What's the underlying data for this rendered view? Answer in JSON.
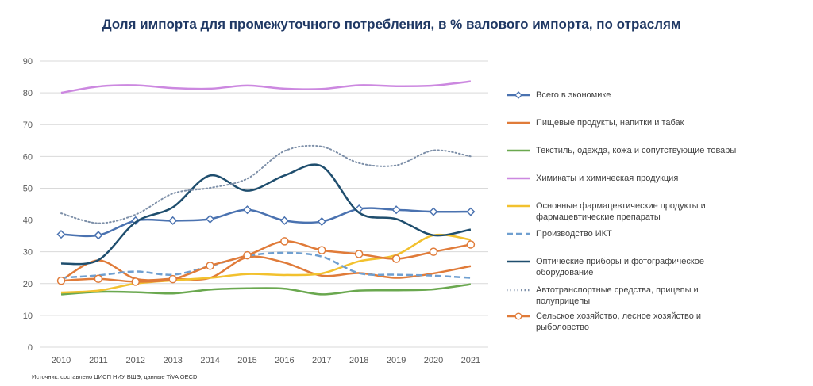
{
  "chart_data": {
    "type": "line",
    "title": "Доля импорта для промежуточного потребления, в % валового импорта, по отраслям",
    "xlabel": "",
    "ylabel": "",
    "ylim": [
      0,
      90
    ],
    "yticks": [
      0,
      10,
      20,
      30,
      40,
      50,
      60,
      70,
      80,
      90
    ],
    "grid": true,
    "legend_position": "right",
    "categories": [
      "2010",
      "2011",
      "2012",
      "2013",
      "2014",
      "2015",
      "2016",
      "2017",
      "2018",
      "2019",
      "2020",
      "2021"
    ],
    "series": [
      {
        "name": "Всего в экономике",
        "color": "#4a72b0",
        "style": "solid",
        "marker": "diamond",
        "values": [
          35.5,
          35.2,
          39.8,
          39.8,
          40.3,
          43.2,
          39.8,
          39.5,
          43.5,
          43.2,
          42.6,
          42.6
        ]
      },
      {
        "name": "Пищевые продукты, напитки и табак",
        "color": "#e07b39",
        "style": "solid",
        "marker": "none",
        "values": [
          21.0,
          27.3,
          21.5,
          21.5,
          21.8,
          28.3,
          26.6,
          22.5,
          23.3,
          21.8,
          23.2,
          25.5
        ]
      },
      {
        "name": "Текстиль, одежда, кожа и сопутствующие товары",
        "color": "#6aa84f",
        "style": "solid",
        "marker": "none",
        "values": [
          16.6,
          17.4,
          17.3,
          16.9,
          18.1,
          18.5,
          18.4,
          16.6,
          17.8,
          17.9,
          18.2,
          19.8
        ]
      },
      {
        "name": "Химикаты и химическая продукция",
        "color": "#cc88e0",
        "style": "solid",
        "marker": "none",
        "values": [
          80.0,
          82.0,
          82.4,
          81.5,
          81.3,
          82.3,
          81.3,
          81.2,
          82.4,
          82.1,
          82.3,
          83.6
        ]
      },
      {
        "name": "Основные фармацевтические продукты и фармацевтические препараты",
        "color": "#f2c12e",
        "style": "solid",
        "marker": "none",
        "values": [
          17.2,
          17.8,
          20.0,
          21.0,
          21.8,
          23.0,
          22.7,
          23.2,
          27.0,
          29.0,
          35.2,
          33.8
        ]
      },
      {
        "name": "Производство ИКТ",
        "color": "#6f9fd0",
        "style": "dashed",
        "marker": "none",
        "values": [
          21.8,
          22.6,
          23.8,
          22.8,
          25.5,
          28.7,
          29.7,
          28.5,
          23.3,
          22.8,
          22.5,
          21.8
        ]
      },
      {
        "name": "Оптические приборы и фотографическое оборудование",
        "color": "#1f4e6e",
        "style": "solid",
        "marker": "none",
        "values": [
          26.3,
          27.4,
          39.3,
          44.0,
          54.0,
          49.2,
          54.0,
          56.9,
          42.3,
          40.3,
          35.2,
          37.0
        ]
      },
      {
        "name": "Автотранспортные средства, прицепы и полуприцепы",
        "color": "#7d8fa8",
        "style": "dotted",
        "marker": "none",
        "values": [
          42.1,
          39.0,
          41.7,
          48.3,
          50.1,
          53.0,
          61.7,
          63.1,
          57.9,
          57.2,
          61.9,
          60.0
        ]
      },
      {
        "name": "Сельское хозяйство, лесное хозяйство и рыболовство",
        "color": "#e07b39",
        "style": "solid",
        "marker": "circle",
        "values": [
          20.9,
          21.5,
          20.6,
          21.4,
          25.6,
          28.9,
          33.3,
          30.5,
          29.3,
          27.8,
          30.0,
          32.3
        ]
      }
    ]
  },
  "legend_lines": [
    [
      "Всего в экономике"
    ],
    [
      "Пищевые продукты, напитки и табак"
    ],
    [
      "Текстиль, одежда, кожа и сопутствующие товары"
    ],
    [
      "Химикаты и химическая продукция"
    ],
    [
      "Основные фармацевтические продукты и",
      "фармацевтические препараты"
    ],
    [
      "Производство ИКТ"
    ],
    [
      "Оптические приборы и фотографическое",
      "оборудование"
    ],
    [
      "Автотранспортные средства, прицепы и",
      "полуприцепы"
    ],
    [
      "Сельское хозяйство, лесное хозяйство и",
      "рыболовство"
    ]
  ],
  "source": "Источник: составлено ЦИСП НИУ ВШЭ, данные TiVA OECD"
}
